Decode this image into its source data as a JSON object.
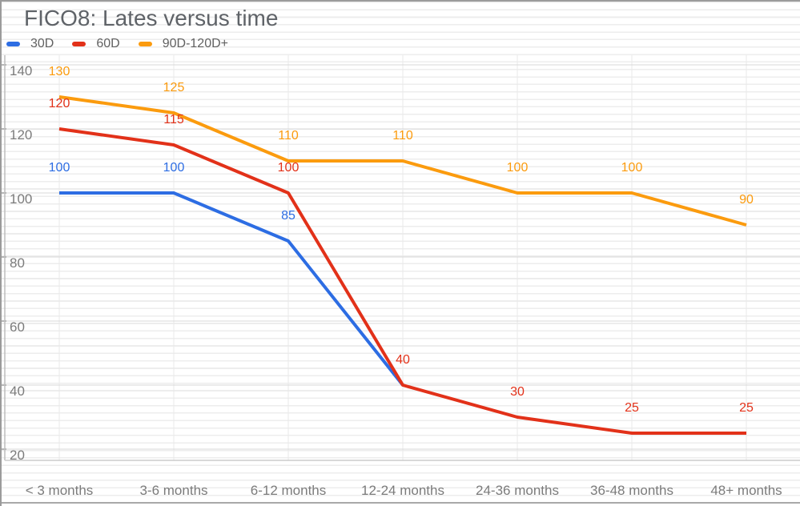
{
  "title": "FICO8: Lates versus time",
  "legend": {
    "items": [
      {
        "label": "30D",
        "color": "#2d6de3"
      },
      {
        "label": "60D",
        "color": "#e23119"
      },
      {
        "label": "90D-120D+",
        "color": "#fb9b0e"
      }
    ]
  },
  "chart_data": {
    "type": "line",
    "title": "FICO8: Lates versus time",
    "categories": [
      "< 3 months",
      "3-6 months",
      "6-12 months",
      "12-24 months",
      "24-36 months",
      "36-48 months",
      "48+ months"
    ],
    "series": [
      {
        "name": "30D",
        "color": "#2d6de3",
        "values": [
          100,
          100,
          85,
          40,
          null,
          null,
          null
        ],
        "data_labels": [
          "100",
          "100",
          "85",
          null,
          null,
          null,
          null
        ]
      },
      {
        "name": "60D",
        "color": "#e23119",
        "values": [
          120,
          115,
          100,
          40,
          30,
          25,
          25
        ],
        "data_labels": [
          "120",
          "115",
          "100",
          "40",
          "30",
          "25",
          "25"
        ]
      },
      {
        "name": "90D-120D+",
        "color": "#fb9b0e",
        "values": [
          130,
          125,
          110,
          110,
          100,
          100,
          90
        ],
        "data_labels": [
          "130",
          "125",
          "110",
          "110",
          "100",
          "100",
          "90"
        ]
      }
    ],
    "yticks": [
      140,
      120,
      100,
      80,
      60,
      40,
      20
    ],
    "ylim": [
      16.5,
      143
    ],
    "grid": true,
    "legend_position": "top-left",
    "xlabel": "",
    "ylabel": ""
  }
}
